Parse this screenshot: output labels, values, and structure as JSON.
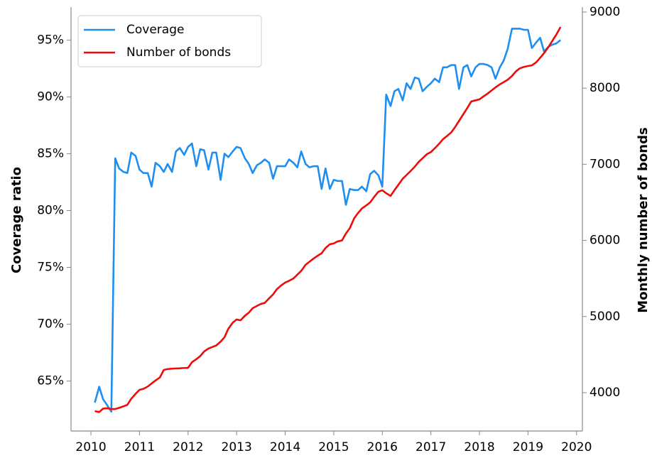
{
  "chart_data": {
    "type": "line",
    "x": [
      2010.08,
      2010.17,
      2010.25,
      2010.33,
      2010.42,
      2010.5,
      2010.58,
      2010.67,
      2010.75,
      2010.83,
      2010.92,
      2011.0,
      2011.08,
      2011.17,
      2011.25,
      2011.33,
      2011.42,
      2011.5,
      2011.58,
      2011.67,
      2011.75,
      2011.83,
      2011.92,
      2012.0,
      2012.08,
      2012.17,
      2012.25,
      2012.33,
      2012.42,
      2012.5,
      2012.58,
      2012.67,
      2012.75,
      2012.83,
      2012.92,
      2013.0,
      2013.08,
      2013.17,
      2013.25,
      2013.33,
      2013.42,
      2013.5,
      2013.58,
      2013.67,
      2013.75,
      2013.83,
      2013.92,
      2014.0,
      2014.08,
      2014.17,
      2014.25,
      2014.33,
      2014.42,
      2014.5,
      2014.58,
      2014.67,
      2014.75,
      2014.83,
      2014.92,
      2015.0,
      2015.08,
      2015.17,
      2015.25,
      2015.33,
      2015.42,
      2015.5,
      2015.58,
      2015.67,
      2015.75,
      2015.83,
      2015.92,
      2016.0,
      2016.08,
      2016.17,
      2016.25,
      2016.33,
      2016.42,
      2016.5,
      2016.58,
      2016.67,
      2016.75,
      2016.83,
      2016.92,
      2017.0,
      2017.08,
      2017.17,
      2017.25,
      2017.33,
      2017.42,
      2017.5,
      2017.58,
      2017.67,
      2017.75,
      2017.83,
      2017.92,
      2018.0,
      2018.08,
      2018.17,
      2018.25,
      2018.33,
      2018.42,
      2018.5,
      2018.58,
      2018.67,
      2018.75,
      2018.83,
      2018.92,
      2019.0,
      2019.08,
      2019.17,
      2019.25,
      2019.33,
      2019.42,
      2019.5,
      2019.58,
      2019.67
    ],
    "series": [
      {
        "name": "Coverage",
        "color": "#1e8ff0",
        "values": [
          63.1,
          64.5,
          63.4,
          62.9,
          62.3,
          84.6,
          83.7,
          83.4,
          83.3,
          85.1,
          84.8,
          83.6,
          83.3,
          83.3,
          82.1,
          84.2,
          83.9,
          83.4,
          84.1,
          83.4,
          85.2,
          85.5,
          84.9,
          85.6,
          85.9,
          83.9,
          85.4,
          85.3,
          83.6,
          85.1,
          85.1,
          82.7,
          85.0,
          84.7,
          85.2,
          85.6,
          85.5,
          84.6,
          84.1,
          83.3,
          84.0,
          84.2,
          84.5,
          84.2,
          82.8,
          83.9,
          83.9,
          83.9,
          84.5,
          84.2,
          83.8,
          85.2,
          84.1,
          83.8,
          83.9,
          83.9,
          81.9,
          83.7,
          81.9,
          82.7,
          82.6,
          82.6,
          80.5,
          81.9,
          81.8,
          81.8,
          82.1,
          81.7,
          83.2,
          83.5,
          83.1,
          82.1,
          90.2,
          89.2,
          90.5,
          90.7,
          89.7,
          91.2,
          90.7,
          91.7,
          91.6,
          90.5,
          90.9,
          91.2,
          91.6,
          91.3,
          92.6,
          92.6,
          92.8,
          92.8,
          90.7,
          92.6,
          92.8,
          91.8,
          92.6,
          92.9,
          92.9,
          92.8,
          92.6,
          91.6,
          92.6,
          93.2,
          94.2,
          96.0,
          96.0,
          96.0,
          95.9,
          95.9,
          94.3,
          94.8,
          95.2,
          94.0,
          94.4,
          94.6,
          94.7,
          95.0
        ]
      },
      {
        "name": "Number of bonds",
        "color": "#f00a0a",
        "axis": "y2",
        "values": [
          3757,
          3745,
          3790,
          3795,
          3785,
          3785,
          3800,
          3820,
          3841,
          3920,
          3985,
          4037,
          4050,
          4080,
          4121,
          4160,
          4200,
          4298,
          4310,
          4315,
          4318,
          4320,
          4324,
          4326,
          4400,
          4440,
          4480,
          4540,
          4580,
          4600,
          4620,
          4670,
          4728,
          4840,
          4920,
          4961,
          4950,
          5010,
          5050,
          5110,
          5140,
          5166,
          5180,
          5240,
          5290,
          5360,
          5410,
          5446,
          5470,
          5500,
          5550,
          5600,
          5680,
          5720,
          5760,
          5800,
          5830,
          5900,
          5950,
          5960,
          5987,
          6000,
          6090,
          6160,
          6290,
          6360,
          6420,
          6460,
          6500,
          6570,
          6640,
          6659,
          6620,
          6584,
          6660,
          6730,
          6810,
          6860,
          6910,
          6970,
          7032,
          7080,
          7134,
          7160,
          7210,
          7270,
          7330,
          7370,
          7420,
          7490,
          7570,
          7660,
          7740,
          7825,
          7840,
          7853,
          7890,
          7930,
          7970,
          8010,
          8050,
          8080,
          8110,
          8160,
          8220,
          8260,
          8280,
          8291,
          8300,
          8340,
          8400,
          8460,
          8540,
          8620,
          8700,
          8804
        ]
      }
    ],
    "y_label": "Coverage ratio",
    "y2_label": "Monthly number of bonds",
    "xlim": [
      2009.59,
      2020.12
    ],
    "xticks": [
      2010,
      2011,
      2012,
      2013,
      2014,
      2015,
      2016,
      2017,
      2018,
      2019,
      2020
    ],
    "ylim": [
      60.6,
      97.9
    ],
    "yticks": [
      {
        "value": 65,
        "label": "65%"
      },
      {
        "value": 70,
        "label": "70%"
      },
      {
        "value": 75,
        "label": "75%"
      },
      {
        "value": 80,
        "label": "80%"
      },
      {
        "value": 85,
        "label": "85%"
      },
      {
        "value": 90,
        "label": "90%"
      },
      {
        "value": 95,
        "label": "95%"
      }
    ],
    "y2lim": [
      3496,
      9065
    ],
    "y2ticks": [
      4000,
      5000,
      6000,
      7000,
      8000,
      9000
    ],
    "legend": "upper left",
    "grid": false
  }
}
